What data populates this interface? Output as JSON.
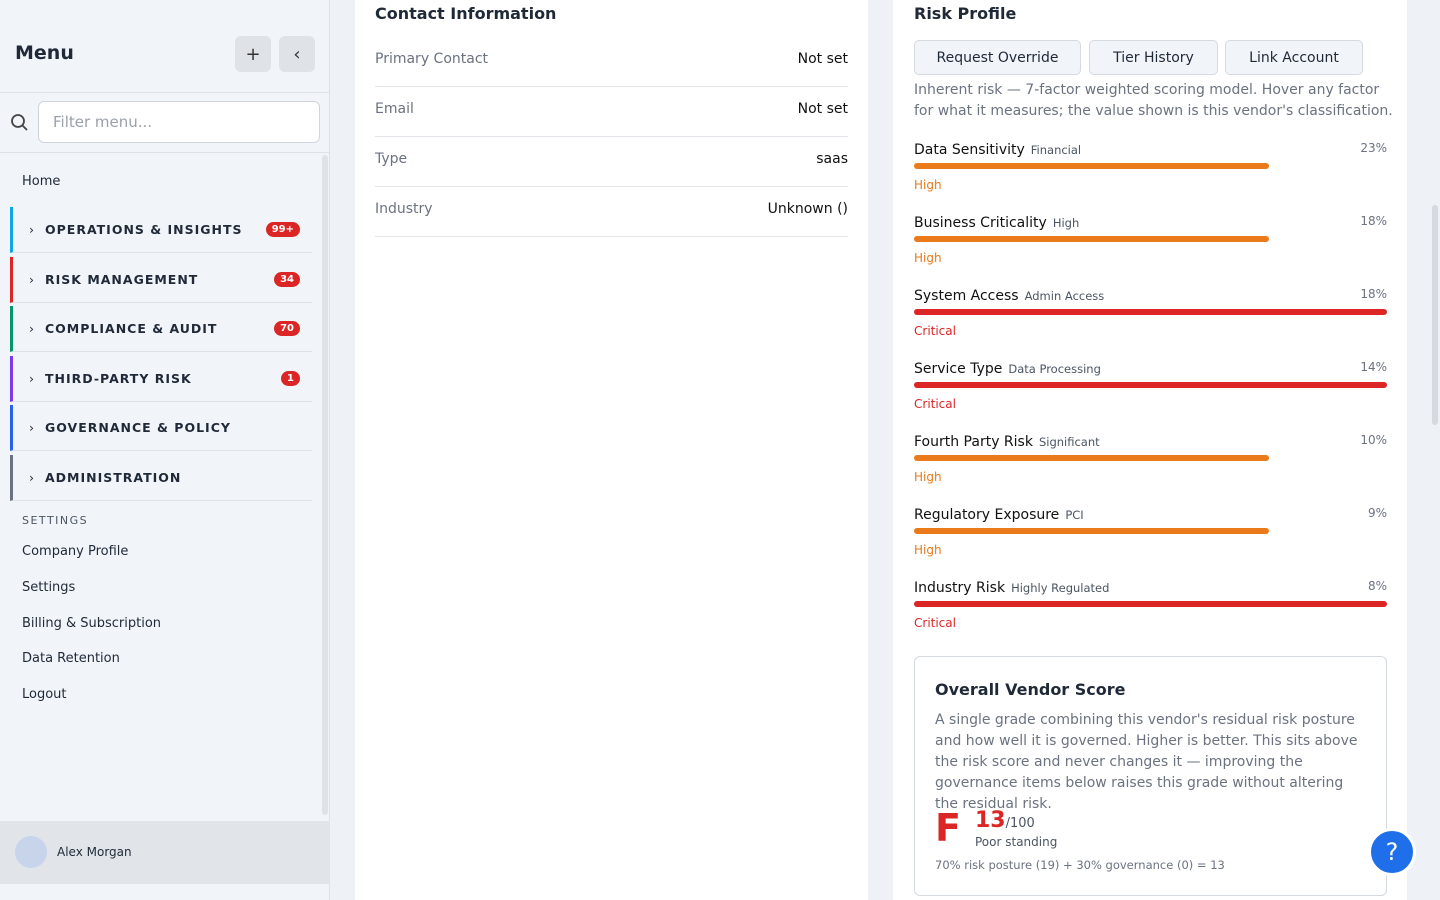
{
  "sidebar": {
    "title": "Menu",
    "filter_placeholder": "Filter menu...",
    "home": "Home",
    "sections": [
      {
        "label": "OPERATIONS & INSIGHTS",
        "badge": "99+"
      },
      {
        "label": "RISK MANAGEMENT",
        "badge": 34
      },
      {
        "label": "COMPLIANCE & AUDIT",
        "badge": 70
      },
      {
        "label": "THIRD-PARTY RISK",
        "badge": 1
      },
      {
        "label": "GOVERNANCE & POLICY"
      },
      {
        "label": "ADMINISTRATION"
      }
    ],
    "settings_heading": "SETTINGS",
    "settings_items": [
      "Company Profile",
      "Settings",
      "Billing & Subscription",
      "Data Retention",
      "Logout"
    ],
    "user": "Alex Morgan"
  },
  "contact": {
    "title": "Contact Information",
    "fields": [
      {
        "label": "Primary Contact",
        "value": "Not set"
      },
      {
        "label": "Email",
        "value": "Not set"
      },
      {
        "label": "Type",
        "value": "saas"
      },
      {
        "label": "Industry",
        "value": "Unknown ()"
      }
    ]
  },
  "risk": {
    "title": "Risk Profile",
    "buttons": [
      "Request Override",
      "Tier History",
      "Link Account"
    ],
    "description": "Inherent risk — 7-factor weighted scoring model. Hover any factor for what it measures; the value shown is this vendor's classification.",
    "factors": [
      {
        "name": "Data Sensitivity",
        "detail": "Financial",
        "weight": "23%",
        "level": "High"
      },
      {
        "name": "Business Criticality",
        "detail": "High",
        "weight": "18%",
        "level": "High"
      },
      {
        "name": "System Access",
        "detail": "Admin Access",
        "weight": "18%",
        "level": "Critical"
      },
      {
        "name": "Service Type",
        "detail": "Data Processing",
        "weight": "14%",
        "level": "Critical"
      },
      {
        "name": "Fourth Party Risk",
        "detail": "Significant",
        "weight": "10%",
        "level": "High"
      },
      {
        "name": "Regulatory Exposure",
        "detail": "PCI",
        "weight": "9%",
        "level": "High"
      },
      {
        "name": "Industry Risk",
        "detail": "Highly Regulated",
        "weight": "8%",
        "level": "Critical"
      }
    ]
  },
  "score": {
    "title": "Overall Vendor Score",
    "description": "A single grade combining this vendor's residual risk posture and how well it is governed. Higher is better. This sits above the risk score and never changes it — improving the governance items below raises this grade without altering the residual risk.",
    "grade": "F",
    "value": 13,
    "suffix": "/100",
    "standing": "Poor standing",
    "formula": "70% risk posture (19) + 30% governance (0) = 13"
  }
}
